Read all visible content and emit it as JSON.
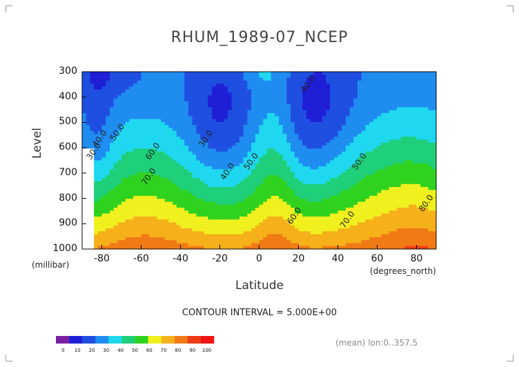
{
  "chart_data": {
    "type": "contour",
    "title": "RHUM_1989-07_NCEP",
    "xlabel": "Latitude",
    "xunit": "(degrees_north)",
    "ylabel": "Level",
    "yunit": "(millibar)",
    "xlim": [
      -90,
      90
    ],
    "ylim": [
      1000,
      300
    ],
    "y_ticks": [
      300,
      400,
      500,
      600,
      700,
      800,
      900,
      1000
    ],
    "x_ticks": [
      -80,
      -60,
      -40,
      -20,
      0,
      20,
      40,
      60,
      80
    ],
    "contour_interval_text": "CONTOUR INTERVAL = 5.000E+00",
    "contour_labels": [
      {
        "text": "30.0",
        "lat": -83,
        "lev": 620
      },
      {
        "text": "40.0",
        "lat": -80,
        "lev": 570
      },
      {
        "text": "50.0",
        "lat": -71,
        "lev": 545
      },
      {
        "text": "60.0",
        "lat": -53,
        "lev": 620
      },
      {
        "text": "70.0",
        "lat": -55,
        "lev": 720
      },
      {
        "text": "30.0",
        "lat": -26,
        "lev": 570
      },
      {
        "text": "40.0",
        "lat": -15,
        "lev": 700
      },
      {
        "text": "50.0",
        "lat": -3,
        "lev": 660
      },
      {
        "text": "40.0",
        "lat": 26,
        "lev": 355
      },
      {
        "text": "50.0",
        "lat": 52,
        "lev": 660
      },
      {
        "text": "60.0",
        "lat": 19,
        "lev": 875
      },
      {
        "text": "70.0",
        "lat": 46,
        "lev": 890
      },
      {
        "text": "80.0",
        "lat": 86,
        "lev": 825
      }
    ],
    "colorbar": {
      "levels": [
        0,
        10,
        20,
        30,
        40,
        50,
        60,
        70,
        80,
        90,
        100
      ],
      "colors": [
        "#7a1fa2",
        "#1f1fd6",
        "#1f4fe0",
        "#1f8cf0",
        "#1fd8f0",
        "#1fcf7a",
        "#2fd21f",
        "#f0f01f",
        "#f5b01a",
        "#f07a14",
        "#f03c14",
        "#ee1414"
      ]
    }
  },
  "footer": {
    "mean_text": "(mean) lon:0..357.5"
  }
}
